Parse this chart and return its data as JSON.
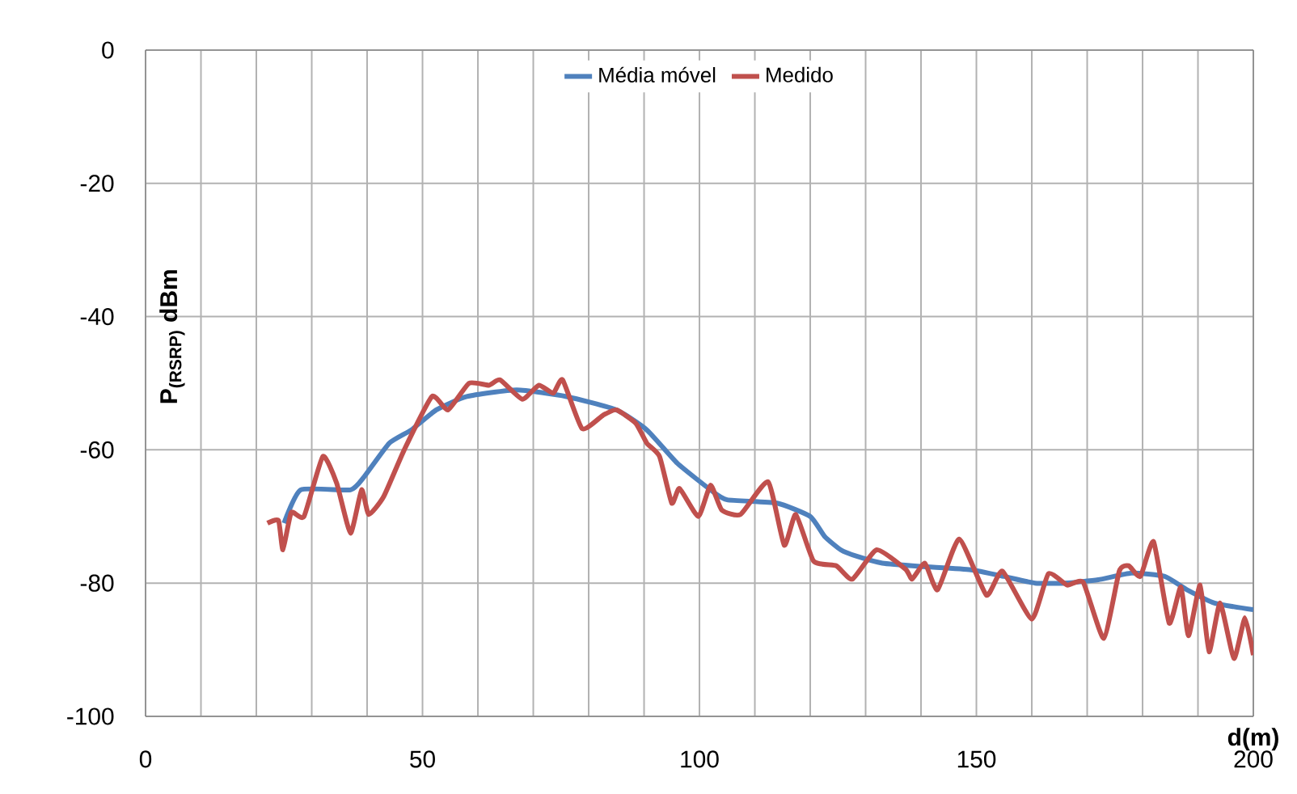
{
  "chart_data": {
    "type": "line",
    "xlabel": "d(m)",
    "ylabel": "P$_{(RSRP)}$ dBm",
    "xlim": [
      0,
      200
    ],
    "ylim": [
      -100,
      0
    ],
    "xticks": [
      {
        "value": 0,
        "label": "0"
      },
      {
        "value": 10,
        "label": null
      },
      {
        "value": 20,
        "label": null
      },
      {
        "value": 30,
        "label": null
      },
      {
        "value": 40,
        "label": null
      },
      {
        "value": 50,
        "label": "50"
      },
      {
        "value": 60,
        "label": null
      },
      {
        "value": 70,
        "label": null
      },
      {
        "value": 80,
        "label": null
      },
      {
        "value": 90,
        "label": null
      },
      {
        "value": 100,
        "label": "100"
      },
      {
        "value": 110,
        "label": null
      },
      {
        "value": 120,
        "label": null
      },
      {
        "value": 130,
        "label": null
      },
      {
        "value": 140,
        "label": null
      },
      {
        "value": 150,
        "label": "150"
      },
      {
        "value": 160,
        "label": null
      },
      {
        "value": 170,
        "label": null
      },
      {
        "value": 180,
        "label": null
      },
      {
        "value": 190,
        "label": null
      },
      {
        "value": 200,
        "label": "200"
      }
    ],
    "yticks": [
      -100,
      -80,
      -60,
      -40,
      -20,
      0
    ],
    "grid": true,
    "legend": "top",
    "marker": "none",
    "line_style": "solid",
    "series": [
      {
        "name": "Média móvel",
        "color": "#4f81bd",
        "x": [
          25,
          28,
          37,
          39.5,
          44,
          48,
          52.5,
          58,
          67,
          76,
          85,
          90.5,
          96,
          102,
          105,
          114,
          120,
          122.6,
          125.5,
          128.5,
          133,
          140,
          149,
          155,
          160.6,
          166,
          172,
          178,
          184,
          188,
          193,
          200
        ],
        "values": [
          -71,
          -66,
          -66,
          -64,
          -59,
          -57,
          -54,
          -52,
          -51,
          -52,
          -54,
          -57,
          -62,
          -66,
          -67.5,
          -68,
          -70,
          -73,
          -75,
          -76,
          -77,
          -77.5,
          -78,
          -79,
          -80,
          -80,
          -79.5,
          -78.5,
          -79,
          -81,
          -83,
          -84
        ]
      },
      {
        "name": "Medido",
        "color": "#c0504d",
        "x": [
          22,
          24,
          24.8,
          26.3,
          28.6,
          32,
          34.5,
          37,
          39,
          40.3,
          43,
          46.7,
          51.7,
          54.6,
          58.4,
          62,
          64,
          68,
          71,
          73.6,
          75.3,
          78.8,
          82.6,
          85,
          88.5,
          90.5,
          92.8,
          95,
          96.4,
          99.8,
          102,
          104,
          107.4,
          112.4,
          115.3,
          117.4,
          120.6,
          124.7,
          127.6,
          132,
          137.2,
          138.4,
          140.7,
          143,
          146.9,
          151.8,
          154.7,
          160,
          163,
          166.4,
          169.3,
          173,
          175.8,
          177.5,
          179.6,
          182,
          184.8,
          186.9,
          188.3,
          190.4,
          192,
          194,
          196.5,
          198.5,
          200
        ],
        "values": [
          -71,
          -70.6,
          -75,
          -69.4,
          -70,
          -61,
          -65,
          -72.5,
          -66,
          -69.7,
          -67,
          -60,
          -52,
          -54,
          -50,
          -50.3,
          -49.5,
          -52.4,
          -50.3,
          -51.5,
          -49.5,
          -56.8,
          -54.8,
          -54,
          -56,
          -59,
          -61,
          -68,
          -65.8,
          -70,
          -65.3,
          -69,
          -69.7,
          -64.8,
          -74.3,
          -69.7,
          -76.7,
          -77.4,
          -79.4,
          -75,
          -77.9,
          -79.4,
          -77,
          -81,
          -73.4,
          -81.8,
          -78.2,
          -85.4,
          -78.6,
          -80.3,
          -79.9,
          -88.3,
          -78.2,
          -77.4,
          -79,
          -73.8,
          -86,
          -80.6,
          -87.9,
          -80.3,
          -90.3,
          -83,
          -91.3,
          -85.2,
          -90.8
        ]
      }
    ]
  }
}
